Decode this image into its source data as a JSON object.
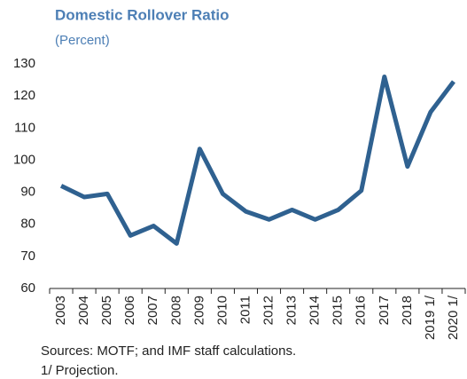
{
  "chart_data": {
    "type": "line",
    "title": "Domestic Rollover Ratio",
    "subtitle": "(Percent)",
    "categories": [
      "2003",
      "2004",
      "2005",
      "2006",
      "2007",
      "2008",
      "2009",
      "2010",
      "2011",
      "2012",
      "2013",
      "2014",
      "2015",
      "2016",
      "2017",
      "2018",
      "2019 1/",
      "2020 1/"
    ],
    "series": [
      {
        "name": "Domestic rollover ratio",
        "color": "#2f6190",
        "values": [
          92,
          88.5,
          89.5,
          76.5,
          79.5,
          74,
          103.5,
          89.5,
          84,
          81.5,
          84.5,
          81.5,
          84.5,
          90.5,
          126,
          98,
          115,
          124.5
        ]
      }
    ],
    "ylim": [
      60,
      130
    ],
    "yticks": [
      60,
      70,
      80,
      90,
      100,
      110,
      120,
      130
    ],
    "grid": false,
    "source": "Sources: MOTF; and IMF staff calculations.",
    "note": "1/ Projection."
  }
}
